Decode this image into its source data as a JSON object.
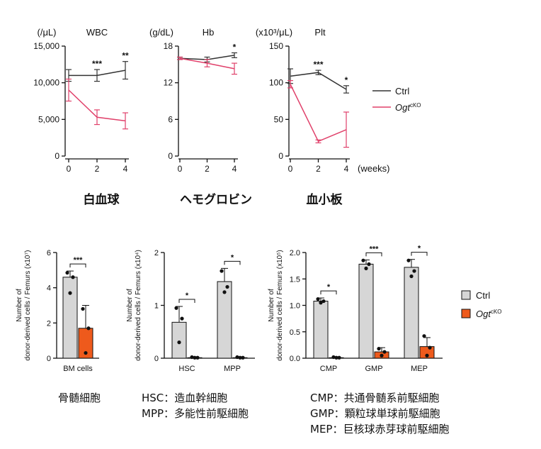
{
  "colors": {
    "ctrl": "#333333",
    "ko": "#e0406a",
    "bar_ctrl": "#d6d6d6",
    "bar_ko": "#ee5a1c",
    "axis": "#111111"
  },
  "blood_legend": {
    "ctrl": "Ctrl",
    "ko_main": "Ogt",
    "ko_sup": "cKO"
  },
  "bar_legend": {
    "ctrl": "Ctrl",
    "ko_main": "Ogt",
    "ko_sup": "cKO"
  },
  "x_unit_label": "(weeks)",
  "chart_data": [
    {
      "type": "line",
      "id": "wbc",
      "title": "WBC",
      "unit": "(/μL)",
      "x": [
        0,
        2,
        4
      ],
      "ylim": [
        0,
        15000
      ],
      "yticks": [
        0,
        5000,
        10000,
        15000
      ],
      "ytick_labels": [
        "0",
        "5,000",
        "10,000",
        "15,000"
      ],
      "series": [
        {
          "name": "Ctrl",
          "values": [
            11000,
            11000,
            11700
          ],
          "err": [
            800,
            800,
            1200
          ]
        },
        {
          "name": "Ogt cKO",
          "values": [
            9000,
            5300,
            4800
          ],
          "err": [
            1500,
            1000,
            1100
          ]
        }
      ],
      "sig": [
        {
          "x": 2,
          "text": "***"
        },
        {
          "x": 4,
          "text": "**"
        }
      ],
      "caption": "白血球"
    },
    {
      "type": "line",
      "id": "hb",
      "title": "Hb",
      "unit": "(g/dL)",
      "x": [
        0,
        2,
        4
      ],
      "ylim": [
        0,
        18
      ],
      "yticks": [
        0,
        6,
        12,
        18
      ],
      "ytick_labels": [
        "0",
        "6",
        "12",
        "18"
      ],
      "series": [
        {
          "name": "Ctrl",
          "values": [
            16.0,
            15.8,
            16.5
          ],
          "err": [
            0.2,
            0.4,
            0.4
          ]
        },
        {
          "name": "Ogt cKO",
          "values": [
            16.0,
            15.2,
            14.3
          ],
          "err": [
            0.2,
            0.6,
            0.9
          ]
        }
      ],
      "sig": [
        {
          "x": 4,
          "text": "*"
        }
      ],
      "caption": "ヘモグロビン"
    },
    {
      "type": "line",
      "id": "plt",
      "title": "Plt",
      "unit": "(x10³/μL)",
      "x": [
        0,
        2,
        4
      ],
      "ylim": [
        0,
        150
      ],
      "yticks": [
        0,
        50,
        100,
        150
      ],
      "ytick_labels": [
        "0",
        "50",
        "100",
        "150"
      ],
      "series": [
        {
          "name": "Ctrl",
          "values": [
            109,
            114,
            91
          ],
          "err": [
            10,
            3,
            5
          ]
        },
        {
          "name": "Ogt cKO",
          "values": [
            98,
            20,
            36
          ],
          "err": [
            5,
            2,
            24
          ]
        }
      ],
      "sig": [
        {
          "x": 2,
          "text": "***"
        },
        {
          "x": 4,
          "text": "*"
        }
      ],
      "caption": "血小板"
    },
    {
      "type": "bar",
      "id": "bm",
      "ylabel_lines": [
        "Number of",
        "donor-derived cells / Femurs"
      ],
      "ylabel_exp": "(x10⁷)",
      "ylim": [
        0,
        6
      ],
      "yticks": [
        0,
        2,
        4,
        6
      ],
      "ytick_labels": [
        "0",
        "2",
        "4",
        "6"
      ],
      "categories": [
        "BM cells"
      ],
      "series": [
        {
          "name": "Ctrl",
          "values": [
            4.6
          ],
          "err": [
            0.35
          ],
          "points": [
            [
              4.85,
              4.6,
              3.7
            ]
          ]
        },
        {
          "name": "Ogt cKO",
          "values": [
            1.7
          ],
          "err": [
            1.3
          ],
          "points": [
            [
              2.8,
              1.7,
              0.3
            ]
          ]
        }
      ],
      "sig": [
        {
          "cat": 0,
          "text": "***"
        }
      ],
      "caption_lines": [
        "骨髄細胞"
      ]
    },
    {
      "type": "bar",
      "id": "hsc",
      "ylabel_lines": [
        "Number of",
        "donor-derived cells / Femurs"
      ],
      "ylabel_exp": "(x10⁴)",
      "ylim": [
        0,
        2
      ],
      "yticks": [
        0,
        1,
        2
      ],
      "ytick_labels": [
        "0",
        "1",
        "2"
      ],
      "categories": [
        "HSC",
        "MPP"
      ],
      "series": [
        {
          "name": "Ctrl",
          "values": [
            0.68,
            1.45
          ],
          "err": [
            0.3,
            0.25
          ],
          "points": [
            [
              0.95,
              0.75,
              0.3
            ],
            [
              1.65,
              1.35,
              1.25
            ]
          ]
        },
        {
          "name": "Ogt cKO",
          "values": [
            0.01,
            0.01
          ],
          "err": [
            0.01,
            0.01
          ],
          "points": [
            [
              0.02,
              0.01,
              0.01
            ],
            [
              0.02,
              0.01,
              0.01
            ]
          ]
        }
      ],
      "sig": [
        {
          "cat": 0,
          "text": "*"
        },
        {
          "cat": 1,
          "text": "*"
        }
      ],
      "caption_lines": [
        "HSC：造血幹細胞",
        "MPP：多能性前駆細胞"
      ]
    },
    {
      "type": "bar",
      "id": "cmp",
      "ylabel_lines": [
        "Number of",
        "donor-derived cells / Femurs"
      ],
      "ylabel_exp": "(x10⁵)",
      "ylim": [
        0,
        2
      ],
      "yticks": [
        0,
        0.5,
        1,
        1.5,
        2
      ],
      "ytick_labels": [
        "0.0",
        "0.5",
        "1.0",
        "1.5",
        "2.0"
      ],
      "categories": [
        "CMP",
        "GMP",
        "MEP"
      ],
      "series": [
        {
          "name": "Ctrl",
          "values": [
            1.08,
            1.78,
            1.72
          ],
          "err": [
            0.06,
            0.08,
            0.15
          ],
          "points": [
            [
              1.12,
              1.08,
              1.05
            ],
            [
              1.85,
              1.78,
              1.7
            ],
            [
              1.85,
              1.65,
              1.55
            ]
          ]
        },
        {
          "name": "Ogt cKO",
          "values": [
            0.01,
            0.12,
            0.22
          ],
          "err": [
            0.01,
            0.08,
            0.17
          ],
          "points": [
            [
              0.02,
              0.01,
              0.01
            ],
            [
              0.18,
              0.12,
              0.05
            ],
            [
              0.42,
              0.2,
              0.05
            ]
          ]
        }
      ],
      "sig": [
        {
          "cat": 0,
          "text": "*"
        },
        {
          "cat": 1,
          "text": "***"
        },
        {
          "cat": 2,
          "text": "*"
        }
      ],
      "caption_lines": [
        "CMP：共通骨髄系前駆細胞",
        "GMP：顆粒球単球前駆細胞",
        "MEP：巨核球赤芽球前駆細胞"
      ]
    }
  ]
}
